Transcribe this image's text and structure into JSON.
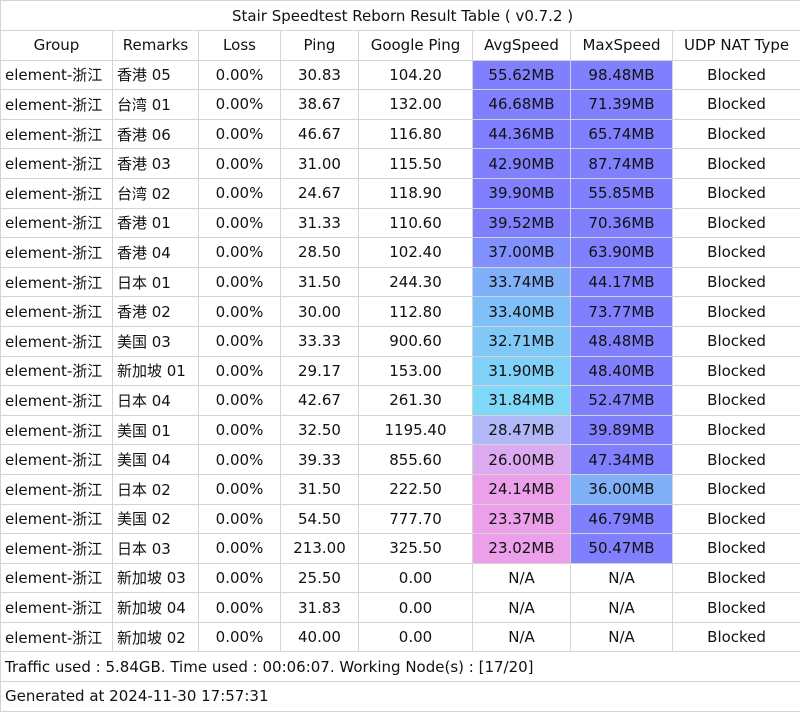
{
  "title": "Stair Speedtest Reborn Result Table ( v0.7.2 )",
  "columns": [
    "Group",
    "Remarks",
    "Loss",
    "Ping",
    "Google Ping",
    "AvgSpeed",
    "MaxSpeed",
    "UDP NAT Type"
  ],
  "rows": [
    {
      "group": "element-浙江",
      "remarks": "香港 05",
      "loss": "0.00%",
      "ping": "30.83",
      "google_ping": "104.20",
      "avg_speed": "55.62MB",
      "avg_color": "#8080ff",
      "max_speed": "98.48MB",
      "max_color": "#8080ff",
      "nat": "Blocked"
    },
    {
      "group": "element-浙江",
      "remarks": "台湾 01",
      "loss": "0.00%",
      "ping": "38.67",
      "google_ping": "132.00",
      "avg_speed": "46.68MB",
      "avg_color": "#8080ff",
      "max_speed": "71.39MB",
      "max_color": "#8080ff",
      "nat": "Blocked"
    },
    {
      "group": "element-浙江",
      "remarks": "香港 06",
      "loss": "0.00%",
      "ping": "46.67",
      "google_ping": "116.80",
      "avg_speed": "44.36MB",
      "avg_color": "#8080ff",
      "max_speed": "65.74MB",
      "max_color": "#8080ff",
      "nat": "Blocked"
    },
    {
      "group": "element-浙江",
      "remarks": "香港 03",
      "loss": "0.00%",
      "ping": "31.00",
      "google_ping": "115.50",
      "avg_speed": "42.90MB",
      "avg_color": "#8080ff",
      "max_speed": "87.74MB",
      "max_color": "#8080ff",
      "nat": "Blocked"
    },
    {
      "group": "element-浙江",
      "remarks": "台湾 02",
      "loss": "0.00%",
      "ping": "24.67",
      "google_ping": "118.90",
      "avg_speed": "39.90MB",
      "avg_color": "#8080ff",
      "max_speed": "55.85MB",
      "max_color": "#8080ff",
      "nat": "Blocked"
    },
    {
      "group": "element-浙江",
      "remarks": "香港 01",
      "loss": "0.00%",
      "ping": "31.33",
      "google_ping": "110.60",
      "avg_speed": "39.52MB",
      "avg_color": "#8080ff",
      "max_speed": "70.36MB",
      "max_color": "#8080ff",
      "nat": "Blocked"
    },
    {
      "group": "element-浙江",
      "remarks": "香港 04",
      "loss": "0.00%",
      "ping": "28.50",
      "google_ping": "102.40",
      "avg_speed": "37.00MB",
      "avg_color": "#8090fc",
      "max_speed": "63.90MB",
      "max_color": "#8080ff",
      "nat": "Blocked"
    },
    {
      "group": "element-浙江",
      "remarks": "日本 01",
      "loss": "0.00%",
      "ping": "31.50",
      "google_ping": "244.30",
      "avg_speed": "33.74MB",
      "avg_color": "#80b0f8",
      "max_speed": "44.17MB",
      "max_color": "#8080ff",
      "nat": "Blocked"
    },
    {
      "group": "element-浙江",
      "remarks": "香港 02",
      "loss": "0.00%",
      "ping": "30.00",
      "google_ping": "112.80",
      "avg_speed": "33.40MB",
      "avg_color": "#80c0f8",
      "max_speed": "73.77MB",
      "max_color": "#8080ff",
      "nat": "Blocked"
    },
    {
      "group": "element-浙江",
      "remarks": "美国 03",
      "loss": "0.00%",
      "ping": "33.33",
      "google_ping": "900.60",
      "avg_speed": "32.71MB",
      "avg_color": "#80c8f8",
      "max_speed": "48.48MB",
      "max_color": "#8080ff",
      "nat": "Blocked"
    },
    {
      "group": "element-浙江",
      "remarks": "新加坡 01",
      "loss": "0.00%",
      "ping": "29.17",
      "google_ping": "153.00",
      "avg_speed": "31.90MB",
      "avg_color": "#80d0f8",
      "max_speed": "48.40MB",
      "max_color": "#8080ff",
      "nat": "Blocked"
    },
    {
      "group": "element-浙江",
      "remarks": "日本 04",
      "loss": "0.00%",
      "ping": "42.67",
      "google_ping": "261.30",
      "avg_speed": "31.84MB",
      "avg_color": "#80d8f8",
      "max_speed": "52.47MB",
      "max_color": "#8080ff",
      "nat": "Blocked"
    },
    {
      "group": "element-浙江",
      "remarks": "美国 01",
      "loss": "0.00%",
      "ping": "32.50",
      "google_ping": "1195.40",
      "avg_speed": "28.47MB",
      "avg_color": "#b0b8f8",
      "max_speed": "39.89MB",
      "max_color": "#8080ff",
      "nat": "Blocked"
    },
    {
      "group": "element-浙江",
      "remarks": "美国 04",
      "loss": "0.00%",
      "ping": "39.33",
      "google_ping": "855.60",
      "avg_speed": "26.00MB",
      "avg_color": "#dcaaf0",
      "max_speed": "47.34MB",
      "max_color": "#8080ff",
      "nat": "Blocked"
    },
    {
      "group": "element-浙江",
      "remarks": "日本 02",
      "loss": "0.00%",
      "ping": "31.50",
      "google_ping": "222.50",
      "avg_speed": "24.14MB",
      "avg_color": "#eca0ea",
      "max_speed": "36.00MB",
      "max_color": "#80b0f8",
      "nat": "Blocked"
    },
    {
      "group": "element-浙江",
      "remarks": "美国 02",
      "loss": "0.00%",
      "ping": "54.50",
      "google_ping": "777.70",
      "avg_speed": "23.37MB",
      "avg_color": "#eca0ea",
      "max_speed": "46.79MB",
      "max_color": "#8080ff",
      "nat": "Blocked"
    },
    {
      "group": "element-浙江",
      "remarks": "日本 03",
      "loss": "0.00%",
      "ping": "213.00",
      "google_ping": "325.50",
      "avg_speed": "23.02MB",
      "avg_color": "#eca0ea",
      "max_speed": "50.47MB",
      "max_color": "#8080ff",
      "nat": "Blocked"
    },
    {
      "group": "element-浙江",
      "remarks": "新加坡 03",
      "loss": "0.00%",
      "ping": "25.50",
      "google_ping": "0.00",
      "avg_speed": "N/A",
      "avg_color": "#ffffff",
      "max_speed": "N/A",
      "max_color": "#ffffff",
      "nat": "Blocked"
    },
    {
      "group": "element-浙江",
      "remarks": "新加坡 04",
      "loss": "0.00%",
      "ping": "31.83",
      "google_ping": "0.00",
      "avg_speed": "N/A",
      "avg_color": "#ffffff",
      "max_speed": "N/A",
      "max_color": "#ffffff",
      "nat": "Blocked"
    },
    {
      "group": "element-浙江",
      "remarks": "新加坡 02",
      "loss": "0.00%",
      "ping": "40.00",
      "google_ping": "0.00",
      "avg_speed": "N/A",
      "avg_color": "#ffffff",
      "max_speed": "N/A",
      "max_color": "#ffffff",
      "nat": "Blocked"
    }
  ],
  "footer_traffic": "Traffic used : 5.84GB. Time used : 00:06:07. Working Node(s) : [17/20]",
  "footer_generated": "Generated at 2024-11-30 17:57:31"
}
